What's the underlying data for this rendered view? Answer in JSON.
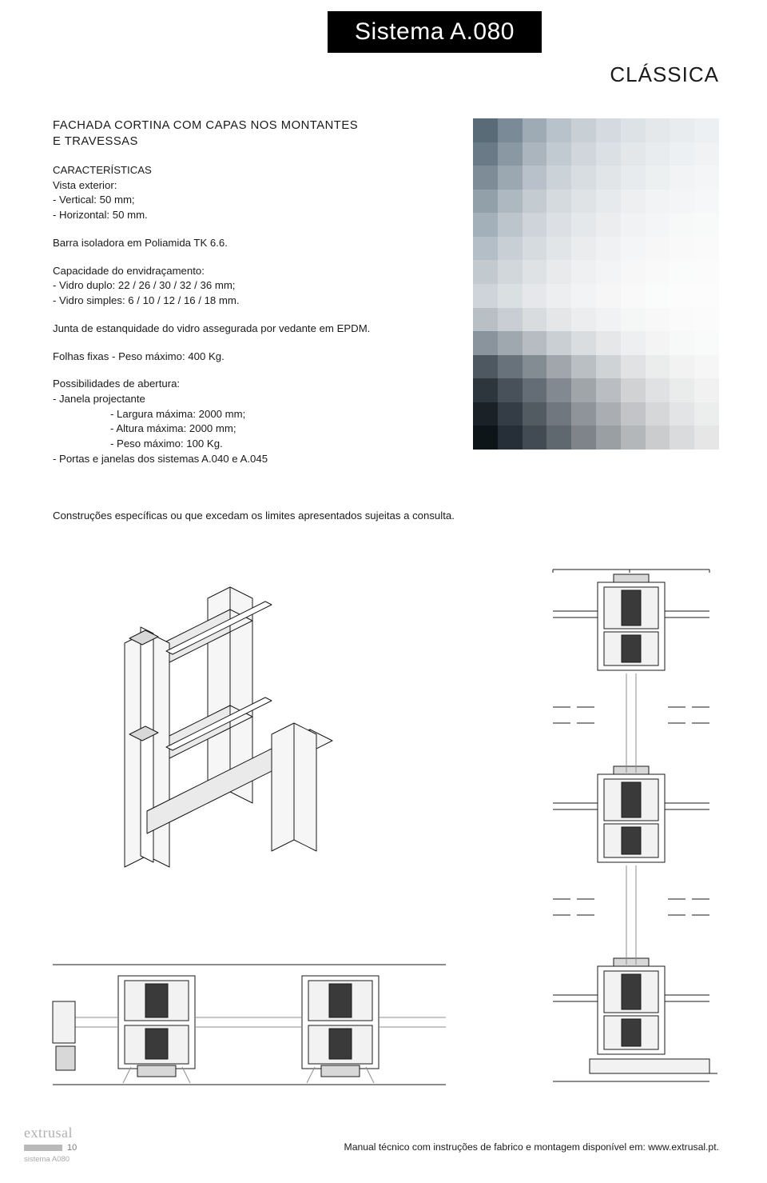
{
  "title_bar": "Sistema A.080",
  "subtitle": "CLÁSSICA",
  "heading_line1": "FACHADA CORTINA COM CAPAS NOS MONTANTES",
  "heading_line2": "E TRAVESSAS",
  "specs": {
    "caracteristicas_label": "CARACTERÍSTICAS",
    "vista_exterior_label": "Vista exterior:",
    "vertical": "- Vertical: 50 mm;",
    "horizontal": "- Horizontal: 50 mm.",
    "barra": "Barra isoladora em Poliamida TK 6.6.",
    "capacidade_label": "Capacidade do envidraçamento:",
    "vidro_duplo": "- Vidro duplo: 22 / 26 / 30 / 32 / 36 mm;",
    "vidro_simples": "- Vidro simples: 6 / 10 / 12 / 16 / 18 mm.",
    "junta": "Junta de estanquidade do vidro assegurada por vedante em EPDM.",
    "folhas": "Folhas fixas - Peso máximo: 400 Kg.",
    "possibilidades_label": "Possibilidades de abertura:",
    "janela": "- Janela projectante",
    "largura": "- Largura máxima: 2000 mm;",
    "altura": "- Altura máxima: 2000 mm;",
    "peso": "- Peso máximo: 100 Kg.",
    "portas": "- Portas e janelas dos sistemas A.040 e A.045"
  },
  "consult_note": "Construções específicas ou que excedam os limites apresentados sujeitas a consulta.",
  "footer_note": "Manual técnico com instruções de fabrico e montagem disponível em: www.extrusal.pt.",
  "footer": {
    "logo_text": "extrusal",
    "page_number": "10",
    "system_label": "sistema A080"
  },
  "photo": {
    "grid_cols": 10,
    "grid_rows": 14,
    "colors": [
      [
        "#5a6b78",
        "#7a8a96",
        "#9eabb5",
        "#b8c2ca",
        "#c8d0d6",
        "#d4dadf",
        "#dde2e6",
        "#e4e8eb",
        "#e9ecee",
        "#edf0f2"
      ],
      [
        "#6a7a86",
        "#8a98a3",
        "#aab5be",
        "#c2cad1",
        "#d0d6db",
        "#dbe0e4",
        "#e3e7ea",
        "#e9ecee",
        "#edf0f2",
        "#f0f2f4"
      ],
      [
        "#7e8c97",
        "#9ca8b1",
        "#b8c1c9",
        "#ccd3d8",
        "#d8dde1",
        "#e1e5e8",
        "#e8ebed",
        "#edf0f1",
        "#f1f3f4",
        "#f3f5f6"
      ],
      [
        "#92a0aa",
        "#aeb8c1",
        "#c4ccd2",
        "#d5dadf",
        "#dfe3e6",
        "#e7eaec",
        "#edeff1",
        "#f1f3f4",
        "#f4f5f6",
        "#f6f7f8"
      ],
      [
        "#a4b0b9",
        "#bcc5cc",
        "#ced4d9",
        "#dce0e4",
        "#e5e8ea",
        "#ecedef",
        "#f1f2f3",
        "#f4f5f6",
        "#f7f8f8",
        "#f8f9f9"
      ],
      [
        "#b4bec6",
        "#c8cfd5",
        "#d6dbdf",
        "#e2e5e8",
        "#eaeced",
        "#f0f1f2",
        "#f4f5f6",
        "#f7f7f8",
        "#f9f9fa",
        "#fafafa"
      ],
      [
        "#c2cad0",
        "#d2d7dc",
        "#dee2e5",
        "#e8eaec",
        "#eff0f1",
        "#f3f4f5",
        "#f7f7f8",
        "#f9f9fa",
        "#fafbfb",
        "#fbfbfc"
      ],
      [
        "#ced4d9",
        "#dadfe2",
        "#e5e7ea",
        "#edeef0",
        "#f2f3f4",
        "#f6f6f7",
        "#f9f9f9",
        "#fafbfb",
        "#fcfcfc",
        "#fcfcfd"
      ],
      [
        "#b8bfc5",
        "#c8ced3",
        "#d8dcdf",
        "#e4e6e8",
        "#ecedee",
        "#f1f2f3",
        "#f5f6f6",
        "#f8f8f9",
        "#fafafa",
        "#fbfbfb"
      ],
      [
        "#8a949c",
        "#a0a8af",
        "#b6bcc2",
        "#cacfd3",
        "#dadde0",
        "#e6e7e9",
        "#eeeff0",
        "#f4f4f5",
        "#f7f8f8",
        "#f9fafa"
      ],
      [
        "#4e5860",
        "#68727a",
        "#848c93",
        "#a0a6ac",
        "#babfc3",
        "#d0d3d6",
        "#e0e2e3",
        "#ebecec",
        "#f2f2f3",
        "#f6f6f7"
      ],
      [
        "#2e363d",
        "#48515a",
        "#646d75",
        "#828990",
        "#a0a5aa",
        "#babec2",
        "#d0d2d4",
        "#e0e1e2",
        "#eaebeb",
        "#f1f1f2"
      ],
      [
        "#1a2228",
        "#343d45",
        "#525a62",
        "#70777e",
        "#8e9499",
        "#aaaeb2",
        "#c2c4c7",
        "#d5d7d8",
        "#e3e4e5",
        "#eceded"
      ],
      [
        "#0e1519",
        "#262f37",
        "#424b53",
        "#60686f",
        "#7e848a",
        "#9a9fa3",
        "#b4b7ba",
        "#cacccd",
        "#dadbdc",
        "#e6e6e7"
      ]
    ]
  },
  "drawings": {
    "stroke": "#1a1a1a",
    "light_stroke": "#8e8e8e",
    "fill_light": "#f6f6f6",
    "fill_grey": "#d8d8d8",
    "fill_dark": "#3a3a3a"
  }
}
